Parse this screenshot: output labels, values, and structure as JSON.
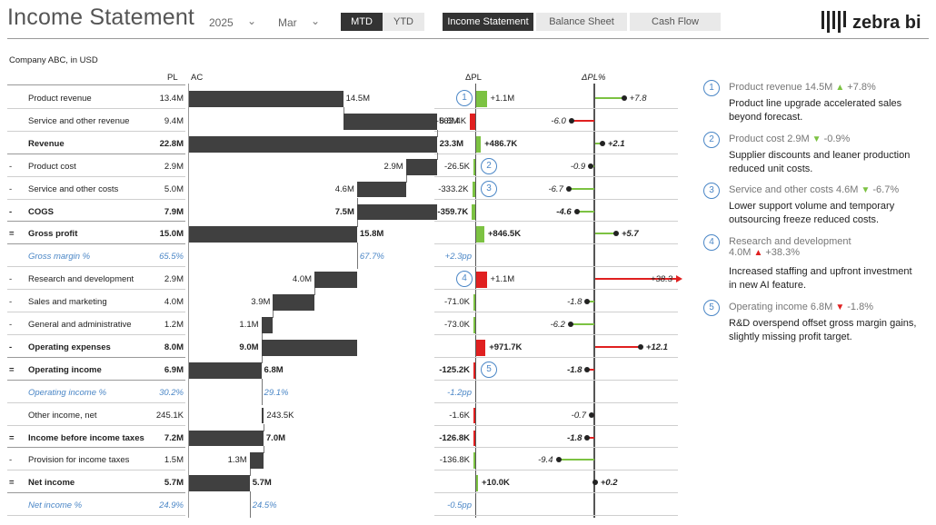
{
  "header": {
    "title": "Income Statement",
    "year": "2025",
    "month": "Mar",
    "period_tabs": [
      "MTD",
      "YTD"
    ],
    "period_active": 0,
    "report_tabs": [
      "Income Statement",
      "Balance Sheet",
      "Cash Flow"
    ],
    "report_active": 0,
    "logo_text": "zebra bi",
    "chevron_icon": "chevron-down-icon"
  },
  "table": {
    "company": "Company ABC, in USD",
    "col_pl": "PL",
    "col_ac": "AC",
    "col_dpl": "ΔPL",
    "col_dplpct": "ΔPL%",
    "rows": [
      {
        "prefix": "",
        "label": "Product revenue",
        "pl": "13.4M",
        "ac_label": "14.5M",
        "dpl": "+1.1M",
        "dplpct": "+7.8",
        "type": "normal"
      },
      {
        "prefix": "",
        "label": "Service and other revenue",
        "pl": "9.4M",
        "ac_label": "8.8M",
        "dpl": "-563.4K",
        "dplpct": "-6.0",
        "type": "normal"
      },
      {
        "prefix": "",
        "label": "Revenue",
        "pl": "22.8M",
        "ac_label": "23.3M",
        "dpl": "+486.7K",
        "dplpct": "+2.1",
        "type": "bold"
      },
      {
        "prefix": "-",
        "label": "Product cost",
        "pl": "2.9M",
        "ac_label": "2.9M",
        "dpl": "-26.5K",
        "dplpct": "-0.9",
        "type": "normal"
      },
      {
        "prefix": "-",
        "label": "Service and other costs",
        "pl": "5.0M",
        "ac_label": "4.6M",
        "dpl": "-333.2K",
        "dplpct": "-6.7",
        "type": "normal"
      },
      {
        "prefix": "-",
        "label": "COGS",
        "pl": "7.9M",
        "ac_label": "7.5M",
        "dpl": "-359.7K",
        "dplpct": "-4.6",
        "type": "bold"
      },
      {
        "prefix": "=",
        "label": "Gross profit",
        "pl": "15.0M",
        "ac_label": "15.8M",
        "dpl": "+846.5K",
        "dplpct": "+5.7",
        "type": "bold"
      },
      {
        "prefix": "",
        "label": "Gross margin %",
        "pl": "65.5%",
        "ac_label": "67.7%",
        "dpl": "+2.3pp",
        "dplpct": "",
        "type": "pct"
      },
      {
        "prefix": "-",
        "label": "Research and development",
        "pl": "2.9M",
        "ac_label": "4.0M",
        "dpl": "+1.1M",
        "dplpct": "+38.3",
        "type": "normal"
      },
      {
        "prefix": "-",
        "label": "Sales and marketing",
        "pl": "4.0M",
        "ac_label": "3.9M",
        "dpl": "-71.0K",
        "dplpct": "-1.8",
        "type": "normal"
      },
      {
        "prefix": "-",
        "label": "General and administrative",
        "pl": "1.2M",
        "ac_label": "1.1M",
        "dpl": "-73.0K",
        "dplpct": "-6.2",
        "type": "normal"
      },
      {
        "prefix": "-",
        "label": "Operating expenses",
        "pl": "8.0M",
        "ac_label": "9.0M",
        "dpl": "+971.7K",
        "dplpct": "+12.1",
        "type": "bold"
      },
      {
        "prefix": "=",
        "label": "Operating income",
        "pl": "6.9M",
        "ac_label": "6.8M",
        "dpl": "-125.2K",
        "dplpct": "-1.8",
        "type": "bold"
      },
      {
        "prefix": "",
        "label": "Operating income %",
        "pl": "30.2%",
        "ac_label": "29.1%",
        "dpl": "-1.2pp",
        "dplpct": "",
        "type": "pct"
      },
      {
        "prefix": "",
        "label": "Other income, net",
        "pl": "245.1K",
        "ac_label": "243.5K",
        "dpl": "-1.6K",
        "dplpct": "-0.7",
        "type": "normal"
      },
      {
        "prefix": "=",
        "label": "Income before income taxes",
        "pl": "7.2M",
        "ac_label": "7.0M",
        "dpl": "-126.8K",
        "dplpct": "-1.8",
        "type": "bold"
      },
      {
        "prefix": "-",
        "label": "Provision for income taxes",
        "pl": "1.5M",
        "ac_label": "1.3M",
        "dpl": "-136.8K",
        "dplpct": "-9.4",
        "type": "normal"
      },
      {
        "prefix": "=",
        "label": "Net income",
        "pl": "5.7M",
        "ac_label": "5.7M",
        "dpl": "+10.0K",
        "dplpct": "+0.2",
        "type": "bold"
      },
      {
        "prefix": "",
        "label": "Net income %",
        "pl": "24.9%",
        "ac_label": "24.5%",
        "dpl": "-0.5pp",
        "dplpct": "",
        "type": "pct"
      }
    ]
  },
  "chart_data": [
    {
      "type": "bar",
      "name": "AC waterfall",
      "categories": [
        "Product revenue",
        "Service and other revenue",
        "Revenue",
        "Product cost",
        "Service and other costs",
        "COGS",
        "Gross profit",
        "Gross margin %",
        "Research and development",
        "Sales and marketing",
        "General and administrative",
        "Operating expenses",
        "Operating income",
        "Operating income %",
        "Other income, net",
        "Income before income taxes",
        "Provision for income taxes",
        "Net income",
        "Net income %"
      ],
      "values": [
        14.5,
        8.8,
        23.3,
        2.9,
        4.6,
        7.5,
        15.8,
        null,
        4.0,
        3.9,
        1.1,
        9.0,
        6.8,
        null,
        0.2435,
        7.0,
        1.3,
        5.7,
        null
      ],
      "unit": "M"
    },
    {
      "type": "bar",
      "name": "ΔPL",
      "categories": [
        "Product revenue",
        "Service and other revenue",
        "Revenue",
        "Product cost",
        "Service and other costs",
        "COGS",
        "Gross profit",
        "Gross margin %",
        "Research and development",
        "Sales and marketing",
        "General and administrative",
        "Operating expenses",
        "Operating income",
        "Operating income %",
        "Other income, net",
        "Income before income taxes",
        "Provision for income taxes",
        "Net income",
        "Net income %"
      ],
      "values": [
        1.1,
        -0.5634,
        0.4867,
        -0.0265,
        -0.3332,
        -0.3597,
        0.8465,
        null,
        1.1,
        -0.071,
        -0.073,
        0.9717,
        -0.1252,
        null,
        -0.0016,
        -0.1268,
        -0.1368,
        0.01,
        null
      ],
      "good": [
        true,
        false,
        true,
        true,
        true,
        true,
        true,
        null,
        false,
        true,
        true,
        false,
        false,
        null,
        false,
        false,
        true,
        true,
        null
      ],
      "unit": "M"
    },
    {
      "type": "bar",
      "name": "ΔPL%",
      "categories": [
        "Product revenue",
        "Service and other revenue",
        "Revenue",
        "Product cost",
        "Service and other costs",
        "COGS",
        "Gross profit",
        "Gross margin %",
        "Research and development",
        "Sales and marketing",
        "General and administrative",
        "Operating expenses",
        "Operating income",
        "Operating income %",
        "Other income, net",
        "Income before income taxes",
        "Provision for income taxes",
        "Net income",
        "Net income %"
      ],
      "values": [
        7.8,
        -6.0,
        2.1,
        -0.9,
        -6.7,
        -4.6,
        5.7,
        null,
        38.3,
        -1.8,
        -6.2,
        12.1,
        -1.8,
        null,
        -0.7,
        -1.8,
        -9.4,
        0.2,
        null
      ],
      "good": [
        true,
        false,
        true,
        true,
        true,
        true,
        true,
        null,
        false,
        true,
        true,
        false,
        false,
        null,
        false,
        false,
        true,
        true,
        null
      ],
      "unit": "%"
    }
  ],
  "colors": {
    "good": "#7cc242",
    "bad": "#e02020",
    "bar": "#404040",
    "accent": "#4a86c6"
  },
  "markers": [
    {
      "num": "1",
      "row": 0,
      "col": "dpl"
    },
    {
      "num": "2",
      "row": 3,
      "col": "dpl"
    },
    {
      "num": "3",
      "row": 4,
      "col": "dpl"
    },
    {
      "num": "4",
      "row": 8,
      "col": "dpl"
    },
    {
      "num": "5",
      "row": 12,
      "col": "dpl"
    }
  ],
  "comments": [
    {
      "num": "1",
      "head": "Product revenue 14.5M",
      "arrow": "▲",
      "good": true,
      "delta": "+7.8%",
      "text": "Product line upgrade accelerated sales beyond forecast."
    },
    {
      "num": "2",
      "head": "Product cost 2.9M",
      "arrow": "▼",
      "good": true,
      "delta": "-0.9%",
      "text": "Supplier discounts and leaner production reduced unit costs."
    },
    {
      "num": "3",
      "head": "Service and other costs 4.6M",
      "arrow": "▼",
      "good": true,
      "delta": "-6.7%",
      "text": "Lower support volume and temporary outsourcing freeze reduced costs."
    },
    {
      "num": "4",
      "head": "Research and development 4.0M",
      "arrow": "▲",
      "good": false,
      "delta": "+38.3%",
      "text": "Increased staffing and upfront investment in new AI feature."
    },
    {
      "num": "5",
      "head": "Operating income 6.8M",
      "arrow": "▼",
      "good": false,
      "delta": "-1.8%",
      "text": "R&D overspend offset gross margin gains, slightly missing profit target."
    }
  ]
}
